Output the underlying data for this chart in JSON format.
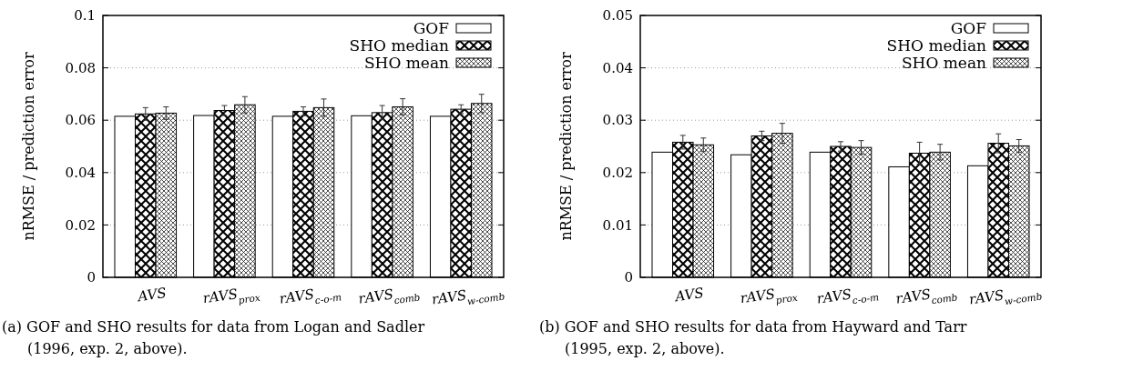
{
  "chart_data": [
    {
      "type": "bar",
      "ylabel": "nRMSE / prediction error",
      "categories": [
        "AVS",
        "rAVS$_{prox}$",
        "rAVS$_{c-o-m}$",
        "rAVS$_{comb}$",
        "rAVS$_{w-comb}$"
      ],
      "series": [
        {
          "name": "GOF",
          "color": "#ffffff",
          "values": [
            0.0615,
            0.0618,
            0.0615,
            0.0617,
            0.0615
          ]
        },
        {
          "name": "SHO median",
          "color": "#000000",
          "values": [
            0.0624,
            0.0637,
            0.0634,
            0.0629,
            0.0642
          ],
          "errors": [
            0.0024,
            0.0019,
            0.0017,
            0.0027,
            0.0017
          ]
        },
        {
          "name": "SHO mean",
          "color": "#000000",
          "values": [
            0.0627,
            0.0659,
            0.0648,
            0.0651,
            0.0664
          ],
          "errors": [
            0.0024,
            0.0031,
            0.0033,
            0.0031,
            0.0035
          ]
        }
      ],
      "ylim": [
        0,
        0.1
      ],
      "yticks": [
        0,
        0.02,
        0.04,
        0.06,
        0.08,
        0.1
      ],
      "grid": "y",
      "legend": "top right",
      "annotations": [
        "(a) GOF and SHO results for data from Logan and Sadler (1996, exp. 2, above)."
      ]
    },
    {
      "type": "bar",
      "ylabel": "nRMSE / prediction error",
      "categories": [
        "AVS",
        "rAVS$_{prox}$",
        "rAVS$_{c-o-m}$",
        "rAVS$_{comb}$",
        "rAVS$_{w-comb}$"
      ],
      "series": [
        {
          "name": "GOF",
          "color": "#ffffff",
          "values": [
            0.0239,
            0.0234,
            0.0239,
            0.0211,
            0.0213
          ]
        },
        {
          "name": "SHO median",
          "color": "#000000",
          "values": [
            0.0258,
            0.027,
            0.025,
            0.0237,
            0.0256
          ],
          "errors": [
            0.0013,
            0.0009,
            0.0009,
            0.0021,
            0.0018
          ]
        },
        {
          "name": "SHO mean",
          "color": "#000000",
          "values": [
            0.0253,
            0.0275,
            0.0248,
            0.0239,
            0.0251
          ],
          "errors": [
            0.0013,
            0.0019,
            0.0013,
            0.0015,
            0.0012
          ]
        }
      ],
      "ylim": [
        0,
        0.05
      ],
      "yticks": [
        0,
        0.01,
        0.02,
        0.03,
        0.04,
        0.05
      ],
      "grid": "y",
      "legend": "top right",
      "annotations": [
        "(b) GOF and SHO results for data from Hayward and Tarr (1995, exp. 2, above)."
      ]
    }
  ]
}
